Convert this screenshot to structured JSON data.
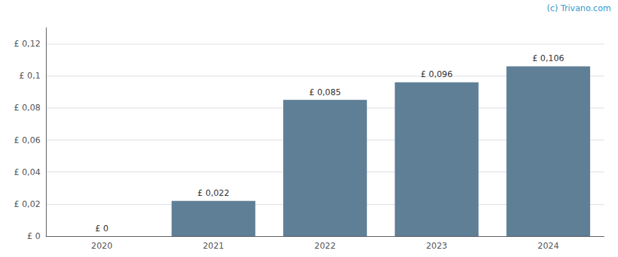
{
  "chart_data": {
    "type": "bar",
    "categories": [
      "2020",
      "2021",
      "2022",
      "2023",
      "2024"
    ],
    "values": [
      0.0,
      0.022,
      0.085,
      0.096,
      0.106
    ],
    "value_labels": [
      "£ 0",
      "£ 0,022",
      "£ 0,085",
      "£ 0,096",
      "£ 0,106"
    ],
    "data_labels": true,
    "color": "#5f7f96",
    "ylim": [
      0,
      0.13
    ],
    "yticks": [
      {
        "value": 0,
        "label": "£ 0"
      },
      {
        "value": 0.02,
        "label": "£ 0,02"
      },
      {
        "value": 0.04,
        "label": "£ 0,04"
      },
      {
        "value": 0.06,
        "label": "£ 0,06"
      },
      {
        "value": 0.08,
        "label": "£ 0,08"
      },
      {
        "value": 0.1,
        "label": "£ 0,1"
      },
      {
        "value": 0.12,
        "label": "£ 0,12"
      }
    ],
    "grid": true,
    "annotations": [
      {
        "text": "(c) Trivano.com",
        "color": "#3399cc"
      }
    ]
  }
}
